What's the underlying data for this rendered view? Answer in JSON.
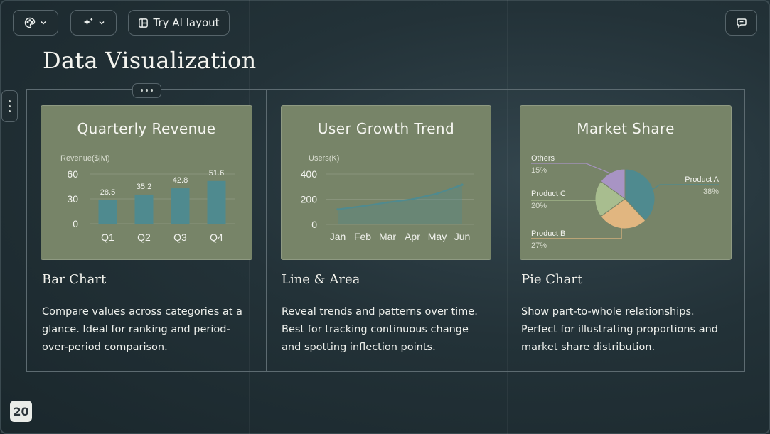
{
  "toolbar": {
    "theme_icon": "palette-icon",
    "magic_icon": "sparkle-icon",
    "ai_layout_label": "Try AI layout",
    "comments_icon": "chat-icon"
  },
  "slide": {
    "title": "Data Visualization",
    "page_number": "20"
  },
  "columns": [
    {
      "heading": "Bar Chart",
      "description": "Compare values across categories at a glance. Ideal for ranking and period-over-period comparison."
    },
    {
      "heading": "Line & Area",
      "description": "Reveal trends and patterns over time. Best for tracking continuous change and spotting inflection points."
    },
    {
      "heading": "Pie Chart",
      "description": "Show part-to-whole relationships. Perfect for illustrating proportions and market share distribution."
    }
  ],
  "colors": {
    "card_bg": "#778468",
    "bar": "#4f8a8f",
    "line": "#4f8a8f",
    "pie_a": "#4f8a8f",
    "pie_b": "#e1b680",
    "pie_c": "#a8bd8f",
    "pie_others": "#a894c4"
  },
  "chart_data": [
    {
      "type": "bar",
      "title": "Quarterly Revenue",
      "ylabel": "Revenue($|M)",
      "categories": [
        "Q1",
        "Q2",
        "Q3",
        "Q4"
      ],
      "values": [
        28.5,
        35.2,
        42.8,
        51.6
      ],
      "data_labels": [
        "28.5",
        "35.2",
        "42.8",
        "51.6"
      ],
      "yticks": [
        0,
        30,
        60
      ],
      "ylim": [
        0,
        60
      ],
      "grid": true
    },
    {
      "type": "area",
      "title": "User Growth Trend",
      "ylabel": "Users(K)",
      "categories": [
        "Jan",
        "Feb",
        "Mar",
        "Apr",
        "May",
        "Jun"
      ],
      "values": [
        120,
        145,
        175,
        200,
        245,
        315
      ],
      "yticks": [
        0,
        200,
        400
      ],
      "ylim": [
        0,
        400
      ],
      "grid": true
    },
    {
      "type": "pie",
      "title": "Market Share",
      "slices": [
        {
          "name": "Product A",
          "pct_label": "38%",
          "value": 38
        },
        {
          "name": "Product B",
          "pct_label": "27%",
          "value": 27
        },
        {
          "name": "Product C",
          "pct_label": "20%",
          "value": 20
        },
        {
          "name": "Others",
          "pct_label": "15%",
          "value": 15
        }
      ]
    }
  ]
}
